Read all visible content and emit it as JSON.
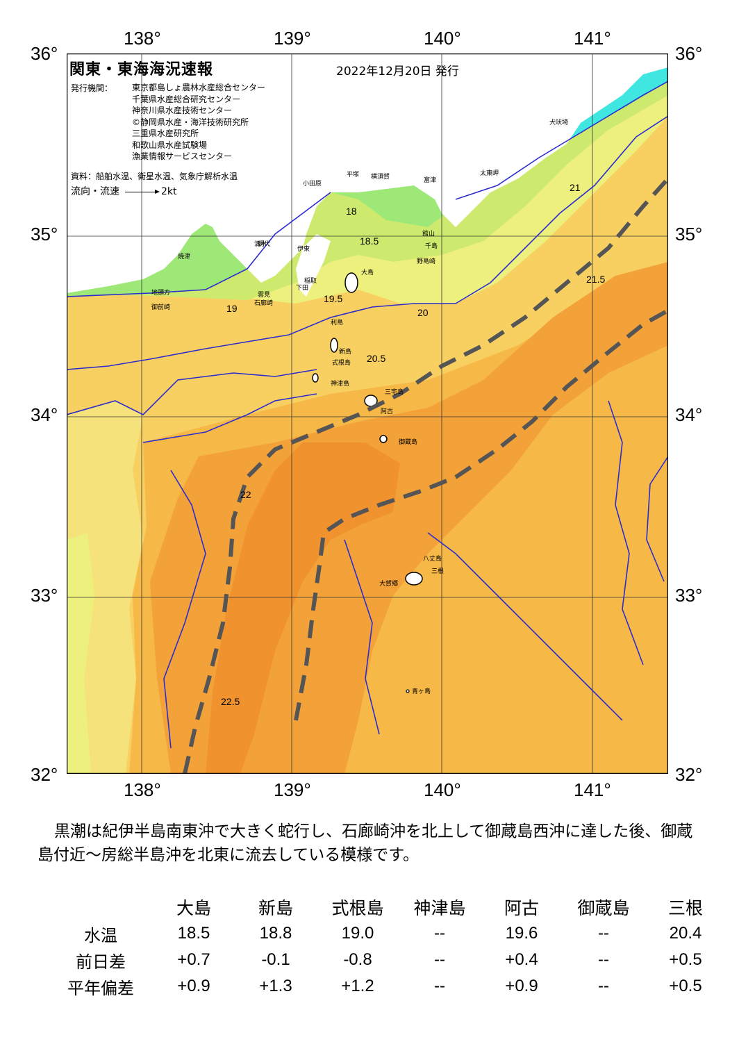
{
  "map": {
    "title": "関東・東海海況速報",
    "date": "2022年12月20日 発行",
    "issuer_label": "発行機関：",
    "issuers": [
      "東京都島しょ農林水産総合センター",
      "千葉県水産総合研究センター",
      "神奈川県水産技術センター",
      "©静岡県水産・海洋技術研究所",
      "三重県水産研究所",
      "和歌山県水産試験場",
      "漁業情報サービスセンター"
    ],
    "source": "資料：船舶水温、衛星水温、気象庁解析水温",
    "legend_label": "流向・流速",
    "legend_speed": "2kt",
    "lon_ticks": [
      "138°",
      "139°",
      "140°",
      "141°"
    ],
    "lat_ticks": [
      "36°",
      "35°",
      "34°",
      "33°",
      "32°"
    ],
    "lon_range": [
      137.5,
      141.5
    ],
    "lat_range": [
      32,
      36
    ],
    "place_labels": [
      "犬吠埼",
      "太東岬",
      "平塚",
      "横須賀",
      "富津",
      "小田原",
      "館山",
      "千島",
      "野島崎",
      "網代",
      "伊東",
      "稲取",
      "下田",
      "雲見",
      "石廊崎",
      "地頭方",
      "御前崎",
      "焼津",
      "清水",
      "大島",
      "利島",
      "新島",
      "式根島",
      "神津島",
      "三宅島",
      "阿古",
      "御蔵島",
      "八丈島",
      "三根",
      "大賀郷",
      "青ヶ島"
    ],
    "isotherm_labels": [
      "18",
      "18.5",
      "19",
      "19.5",
      "20",
      "20.5",
      "21",
      "21.5",
      "22",
      "22.5"
    ],
    "colors": {
      "land": "#ffffff",
      "t18": "#4fd9a8",
      "t18_5": "#6fe08c",
      "t19": "#9ee878",
      "t19_5": "#cdea6e",
      "t20": "#eef07e",
      "t20_5": "#f6e27a",
      "t21": "#f8d062",
      "t21_5": "#f6b847",
      "t22": "#f3a23a",
      "t22_5": "#f0922e",
      "coastal_cyan": "#3fe7e0",
      "isotherm": "#2c2ccd",
      "kuroshio_axis": "#555555"
    }
  },
  "commentary": "黒潮は紀伊半島南東沖で大きく蛇行し、石廊崎沖を北上して御蔵島西沖に達した後、御蔵島付近～房総半島沖を北東に流去している模様です。",
  "stats": {
    "columns": [
      "大島",
      "新島",
      "式根島",
      "神津島",
      "阿古",
      "御蔵島",
      "三根"
    ],
    "rows": [
      {
        "label": "水温",
        "values": [
          "18.5",
          "18.8",
          "19.0",
          "--",
          "19.6",
          "--",
          "20.4"
        ]
      },
      {
        "label": "前日差",
        "values": [
          "+0.7",
          "-0.1",
          "-0.8",
          "--",
          "+0.4",
          "--",
          "+0.5"
        ]
      },
      {
        "label": "平年偏差",
        "values": [
          "+0.9",
          "+1.3",
          "+1.2",
          "--",
          "+0.9",
          "--",
          "+0.5"
        ]
      }
    ]
  }
}
